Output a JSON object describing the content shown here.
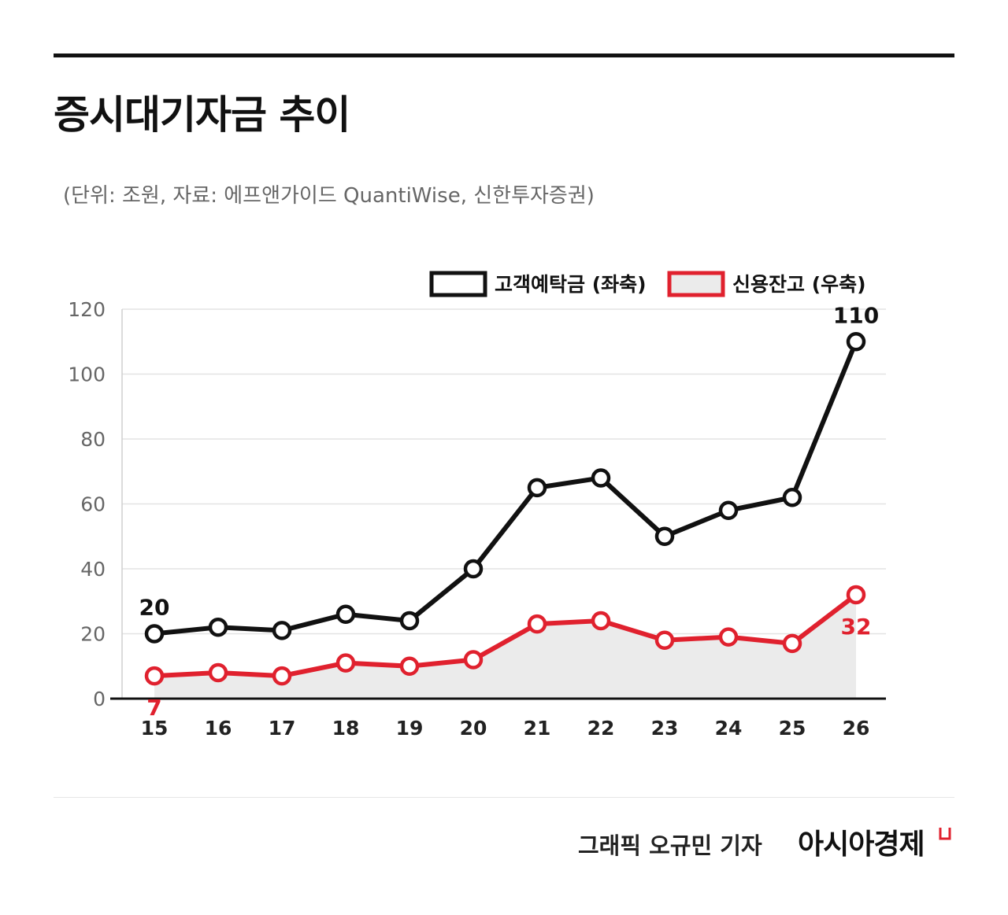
{
  "header": {
    "title": "증시대기자금 추이",
    "subtitle": "(단위: 조원, 자료: 에프앤가이드 QuantiWise, 신한투자증권)"
  },
  "footer": {
    "credit": "그래픽  오규민 기자",
    "brand": "아시아경제"
  },
  "colors": {
    "deposit": "#111111",
    "credit": "#e0212e",
    "area": "#ebebeb",
    "grid": "#e3e3e3",
    "tick": "#666666"
  },
  "chart_data": {
    "type": "line",
    "x": [
      "15",
      "16",
      "17",
      "18",
      "19",
      "20",
      "21",
      "22",
      "23",
      "24",
      "25",
      "26"
    ],
    "ylim": [
      0,
      120
    ],
    "yticks": [
      "0",
      "20",
      "40",
      "60",
      "80",
      "100",
      "120"
    ],
    "legend_position": "top-right",
    "series": [
      {
        "name": "고객예탁금 (좌축)",
        "values": [
          20,
          22,
          21,
          26,
          24,
          40,
          65,
          68,
          50,
          58,
          62,
          110
        ],
        "labels": [
          {
            "index": 0,
            "text": "20"
          },
          {
            "index": 11,
            "text": "110"
          }
        ]
      },
      {
        "name": "신용잔고 (우축)",
        "values": [
          7,
          8,
          7,
          11,
          10,
          12,
          23,
          24,
          18,
          19,
          17,
          32
        ],
        "labels": [
          {
            "index": 0,
            "text": "7"
          },
          {
            "index": 11,
            "text": "32"
          }
        ],
        "area": true
      }
    ]
  }
}
